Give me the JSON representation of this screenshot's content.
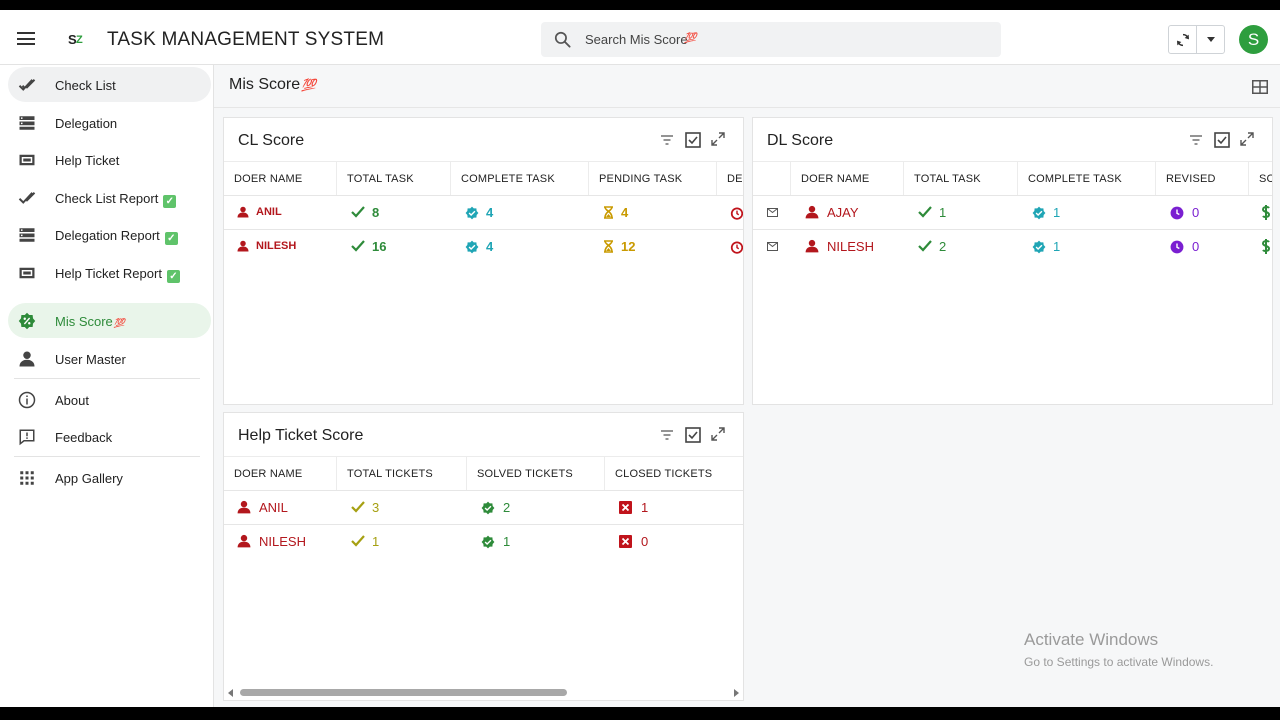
{
  "app": {
    "title": "TASK MANAGEMENT SYSTEM",
    "avatar_initial": "S"
  },
  "search": {
    "placeholder": "Search Mis Score",
    "emoji": "💯"
  },
  "sidebar": {
    "items": [
      {
        "label": "Check List",
        "icon": "double-check-icon"
      },
      {
        "label": "Delegation",
        "icon": "list-stack-icon"
      },
      {
        "label": "Help Ticket",
        "icon": "ticket-icon"
      },
      {
        "label": "Check List Report",
        "icon": "double-check-icon",
        "badge": "✓"
      },
      {
        "label": "Delegation Report",
        "icon": "list-stack-icon",
        "badge": "✓"
      },
      {
        "label": "Help Ticket Report",
        "icon": "ticket-icon",
        "badge": "✓"
      },
      {
        "label": "Mis Score",
        "icon": "percent-badge-icon",
        "emoji": "💯"
      },
      {
        "label": "User Master",
        "icon": "user-icon"
      },
      {
        "label": "About",
        "icon": "info-icon"
      },
      {
        "label": "Feedback",
        "icon": "feedback-icon"
      },
      {
        "label": "App Gallery",
        "icon": "grid-apps-icon"
      }
    ]
  },
  "page": {
    "title": "Mis Score",
    "emoji": "💯"
  },
  "cl_score": {
    "title": "CL Score",
    "columns": [
      "DOER NAME",
      "TOTAL TASK",
      "COMPLETE TASK",
      "PENDING TASK",
      "DEL"
    ],
    "rows": [
      {
        "name": "ANIL",
        "total": "8",
        "complete": "4",
        "pending": "4"
      },
      {
        "name": "NILESH",
        "total": "16",
        "complete": "4",
        "pending": "12"
      }
    ]
  },
  "dl_score": {
    "title": "DL Score",
    "columns": [
      "DOER NAME",
      "TOTAL TASK",
      "COMPLETE TASK",
      "REVISED",
      "SC"
    ],
    "rows": [
      {
        "name": "AJAY",
        "total": "1",
        "complete": "1",
        "revised": "0"
      },
      {
        "name": "NILESH",
        "total": "2",
        "complete": "1",
        "revised": "0"
      }
    ]
  },
  "help_ticket_score": {
    "title": "Help Ticket Score",
    "columns": [
      "DOER NAME",
      "TOTAL TICKETS",
      "SOLVED TICKETS",
      "CLOSED TICKETS"
    ],
    "rows": [
      {
        "name": "ANIL",
        "total": "3",
        "solved": "2",
        "closed": "1"
      },
      {
        "name": "NILESH",
        "total": "1",
        "solved": "1",
        "closed": "0"
      }
    ]
  },
  "watermark": {
    "line1": "Activate Windows",
    "line2": "Go to Settings to activate Windows."
  },
  "colors": {
    "accent_green": "#2e9e3e",
    "name_red": "#b3171d",
    "teal": "#1fa5b5",
    "amber": "#c99a00",
    "purple": "#7a1fd1"
  }
}
